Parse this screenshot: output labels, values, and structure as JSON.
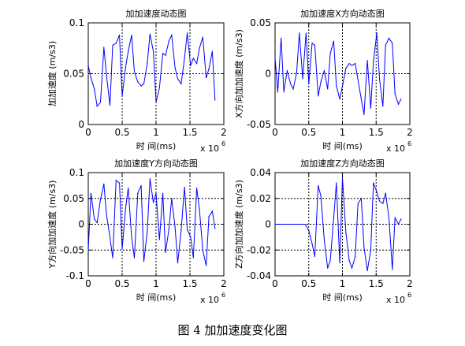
{
  "figure_caption": "图 4 加加速度变化图",
  "chart_data": [
    {
      "type": "line",
      "title": "加加速度动态图",
      "xlabel": "时 间(ms)",
      "ylabel": "加加速度 (m/s3)",
      "x_multiplier_label": "x 10",
      "x_multiplier_exp": "6",
      "xlim": [
        0,
        2
      ],
      "ylim": [
        0,
        0.1
      ],
      "xticks": [
        0,
        0.5,
        1,
        1.5,
        2
      ],
      "xtick_labels": [
        "0",
        "0.5",
        "1",
        "1.5",
        "2"
      ],
      "yticks": [
        0,
        0.05,
        0.1
      ],
      "ytick_labels": [
        "0",
        "0.05",
        "0.1"
      ],
      "grid": "dotted",
      "color": "#0000ff",
      "x": [
        0.0,
        0.04,
        0.09,
        0.13,
        0.18,
        0.23,
        0.27,
        0.32,
        0.36,
        0.41,
        0.46,
        0.5,
        0.55,
        0.59,
        0.64,
        0.68,
        0.73,
        0.78,
        0.82,
        0.87,
        0.91,
        0.96,
        1.0,
        1.05,
        1.1,
        1.14,
        1.19,
        1.23,
        1.28,
        1.32,
        1.37,
        1.42,
        1.46,
        1.51,
        1.55,
        1.6,
        1.64,
        1.69,
        1.74,
        1.78,
        1.83,
        1.87
      ],
      "y": [
        0.058,
        0.046,
        0.035,
        0.018,
        0.022,
        0.076,
        0.048,
        0.019,
        0.078,
        0.08,
        0.088,
        0.028,
        0.056,
        0.072,
        0.088,
        0.052,
        0.042,
        0.038,
        0.04,
        0.06,
        0.089,
        0.072,
        0.022,
        0.036,
        0.07,
        0.068,
        0.082,
        0.088,
        0.056,
        0.045,
        0.04,
        0.065,
        0.09,
        0.058,
        0.065,
        0.06,
        0.075,
        0.086,
        0.046,
        0.055,
        0.072,
        0.024
      ]
    },
    {
      "type": "line",
      "title": "加加速度X方向动态图",
      "xlabel": "时 间(ms)",
      "ylabel": "X方向加加速度 (m/s3)",
      "x_multiplier_label": "x 10",
      "x_multiplier_exp": "6",
      "xlim": [
        0,
        2
      ],
      "ylim": [
        -0.05,
        0.05
      ],
      "xticks": [
        0,
        0.5,
        1,
        1.5,
        2
      ],
      "xtick_labels": [
        "0",
        "0.5",
        "1",
        "1.5",
        "2"
      ],
      "yticks": [
        -0.05,
        0,
        0.05
      ],
      "ytick_labels": [
        "-0.05",
        "0",
        "0.05"
      ],
      "grid": "dotted",
      "color": "#0000ff",
      "x": [
        0.0,
        0.04,
        0.09,
        0.13,
        0.18,
        0.23,
        0.27,
        0.32,
        0.36,
        0.41,
        0.46,
        0.5,
        0.55,
        0.59,
        0.64,
        0.68,
        0.73,
        0.78,
        0.82,
        0.87,
        0.91,
        0.96,
        1.0,
        1.05,
        1.1,
        1.14,
        1.19,
        1.23,
        1.28,
        1.32,
        1.37,
        1.42,
        1.46,
        1.51,
        1.55,
        1.6,
        1.64,
        1.69,
        1.74,
        1.78,
        1.83,
        1.87
      ],
      "y": [
        0.016,
        -0.018,
        0.035,
        -0.018,
        0.003,
        -0.01,
        -0.015,
        0.001,
        0.04,
        -0.005,
        0.04,
        -0.01,
        0.03,
        0.028,
        -0.022,
        -0.008,
        0.003,
        -0.015,
        0.02,
        0.032,
        -0.012,
        -0.025,
        -0.012,
        0.005,
        0.01,
        0.008,
        0.01,
        -0.006,
        -0.025,
        -0.04,
        0.013,
        -0.034,
        0.012,
        0.04,
        -0.005,
        -0.032,
        0.028,
        0.035,
        0.03,
        -0.02,
        -0.03,
        -0.025
      ]
    },
    {
      "type": "line",
      "title": "加加速度Y方向动态图",
      "xlabel": "时 间(ms)",
      "ylabel": "Y方向加加速度 (m/s3)",
      "x_multiplier_label": "x 10",
      "x_multiplier_exp": "6",
      "xlim": [
        0,
        2
      ],
      "ylim": [
        -0.1,
        0.1
      ],
      "xticks": [
        0,
        0.5,
        1,
        1.5,
        2
      ],
      "xtick_labels": [
        "0",
        "0.5",
        "1",
        "1.5",
        "2"
      ],
      "yticks": [
        -0.1,
        -0.05,
        0,
        0.05,
        0.1
      ],
      "ytick_labels": [
        "-0.1",
        "-0.05",
        "0",
        "0.05",
        "0.1"
      ],
      "grid": "dotted",
      "color": "#0000ff",
      "x": [
        0.0,
        0.04,
        0.09,
        0.13,
        0.18,
        0.23,
        0.27,
        0.32,
        0.36,
        0.41,
        0.46,
        0.5,
        0.55,
        0.59,
        0.64,
        0.68,
        0.73,
        0.78,
        0.82,
        0.87,
        0.91,
        0.96,
        1.0,
        1.05,
        1.1,
        1.14,
        1.19,
        1.23,
        1.28,
        1.32,
        1.37,
        1.42,
        1.46,
        1.51,
        1.55,
        1.6,
        1.64,
        1.69,
        1.74,
        1.78,
        1.83,
        1.87
      ],
      "y": [
        -0.05,
        0.06,
        0.01,
        0.003,
        0.048,
        0.078,
        0.018,
        -0.025,
        -0.065,
        0.085,
        0.08,
        -0.048,
        0.03,
        0.07,
        -0.025,
        -0.065,
        0.06,
        0.075,
        -0.072,
        -0.015,
        0.088,
        0.042,
        0.06,
        -0.03,
        0.06,
        -0.055,
        -0.01,
        0.05,
        -0.005,
        -0.075,
        -0.012,
        0.072,
        -0.01,
        -0.025,
        -0.065,
        0.07,
        0.03,
        -0.05,
        -0.08,
        0.015,
        0.025,
        -0.008
      ]
    },
    {
      "type": "line",
      "title": "加加速度Z方向动态图",
      "xlabel": "时 间(ms)",
      "ylabel": "Z方向加加速度 (m/s3)",
      "x_multiplier_label": "x 10",
      "x_multiplier_exp": "6",
      "xlim": [
        0,
        2
      ],
      "ylim": [
        -0.04,
        0.04
      ],
      "xticks": [
        0,
        0.5,
        1,
        1.5,
        2
      ],
      "xtick_labels": [
        "0",
        "0.5",
        "1",
        "1.5",
        "2"
      ],
      "yticks": [
        -0.04,
        -0.02,
        0,
        0.02,
        0.04
      ],
      "ytick_labels": [
        "-0.04",
        "-0.02",
        "0",
        "0.02",
        "0.04"
      ],
      "grid": "dotted",
      "color": "#0000ff",
      "x": [
        0.0,
        0.45,
        0.5,
        0.55,
        0.59,
        0.64,
        0.68,
        0.73,
        0.78,
        0.82,
        0.87,
        0.91,
        0.96,
        1.0,
        1.05,
        1.1,
        1.14,
        1.19,
        1.23,
        1.28,
        1.32,
        1.37,
        1.42,
        1.46,
        1.51,
        1.55,
        1.6,
        1.64,
        1.69,
        1.74,
        1.78,
        1.83,
        1.87
      ],
      "y": [
        0.0,
        0.0,
        -0.005,
        -0.015,
        -0.025,
        0.03,
        0.022,
        -0.012,
        -0.034,
        -0.028,
        0.005,
        0.032,
        -0.03,
        0.036,
        -0.006,
        -0.028,
        -0.034,
        -0.025,
        0.016,
        0.02,
        -0.018,
        -0.036,
        -0.02,
        0.032,
        0.025,
        0.018,
        0.016,
        0.024,
        0.005,
        -0.035,
        0.005,
        0.0,
        0.004
      ]
    }
  ]
}
